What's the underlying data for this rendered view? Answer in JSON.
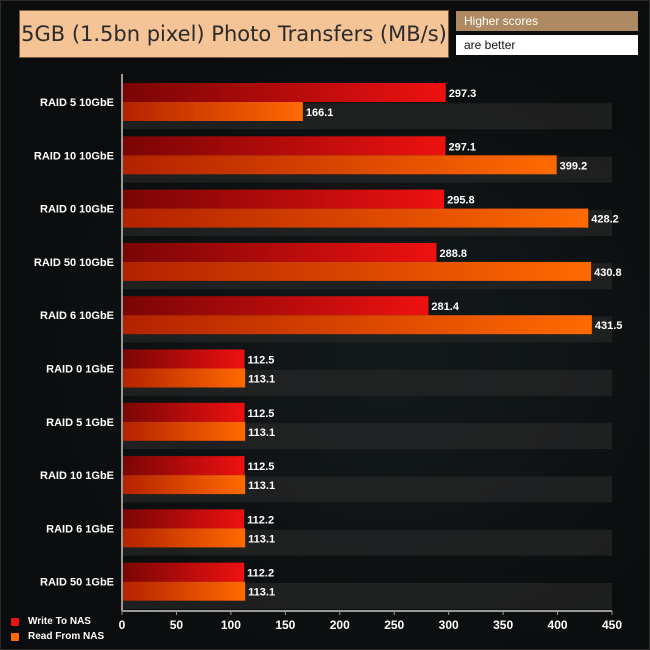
{
  "header": {
    "title": "5GB (1.5bn pixel) Photo Transfers (MB/s)",
    "note_line1": "Higher scores",
    "note_line2": "are better"
  },
  "colors": {
    "write": "#ee1111",
    "read": "#ff6a00"
  },
  "chart_data": {
    "type": "bar",
    "orientation": "horizontal",
    "title": "5GB (1.5bn pixel) Photo Transfers (MB/s)",
    "categories": [
      "RAID 5 10GbE",
      "RAID 10 10GbE",
      "RAID 0 10GbE",
      "RAID 50 10GbE",
      "RAID 6 10GbE",
      "RAID 0 1GbE",
      "RAID 5 1GbE",
      "RAID 10 1GbE",
      "RAID 6 1GbE",
      "RAID 50 1GbE"
    ],
    "series": [
      {
        "name": "Write To NAS",
        "values": [
          297.3,
          297.1,
          295.8,
          288.8,
          281.4,
          112.5,
          112.5,
          112.5,
          112.2,
          112.2
        ]
      },
      {
        "name": "Read From NAS",
        "values": [
          166.1,
          399.2,
          428.2,
          430.8,
          431.5,
          113.1,
          113.1,
          113.1,
          113.1,
          113.1
        ]
      }
    ],
    "xlim": [
      0,
      450
    ],
    "xticks": [
      0,
      50,
      100,
      150,
      200,
      250,
      300,
      350,
      400,
      450
    ],
    "legend_position": "bottom-left",
    "grid": false
  }
}
